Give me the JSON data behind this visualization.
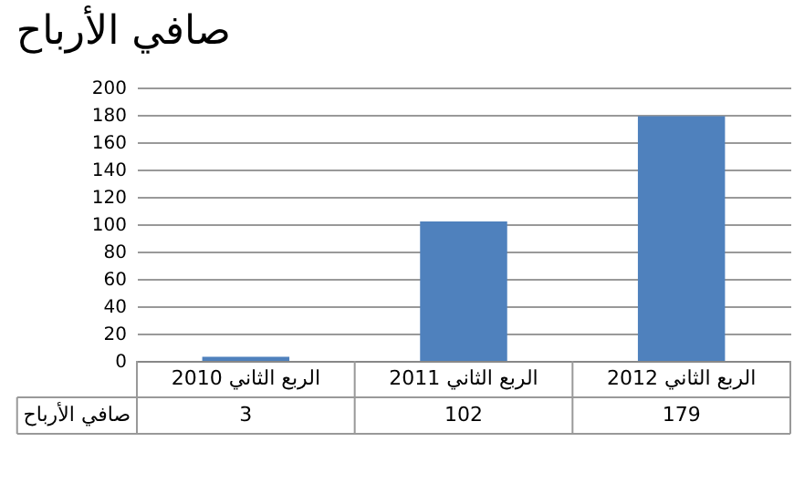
{
  "chart_data": {
    "type": "bar",
    "title": "صافي الأرباح",
    "categories": [
      "الربع الثاني 2010",
      "الربع الثاني 2011",
      "الربع الثاني 2012"
    ],
    "series": [
      {
        "name": "صافي الأرباح",
        "color": "#4f81bd",
        "values": [
          3,
          102,
          179
        ]
      }
    ],
    "ylim": [
      0,
      200
    ],
    "yticks": [
      0,
      20,
      40,
      60,
      80,
      100,
      120,
      140,
      160,
      180,
      200
    ],
    "grid": "y",
    "data_labels": true,
    "legend": false
  }
}
